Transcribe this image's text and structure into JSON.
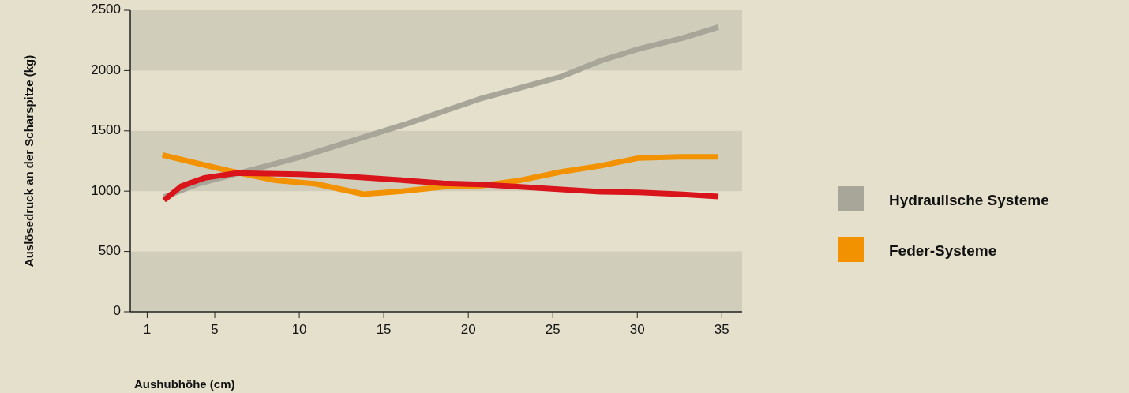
{
  "chart_data": {
    "type": "line",
    "xlabel": "Aushubhöhe (cm)",
    "ylabel": "Auslösedruck an der Scharspitze (kg)",
    "xlim": [
      0,
      36.2
    ],
    "xticks": [
      1,
      5,
      10,
      15,
      20,
      25,
      30,
      35
    ],
    "ylim": [
      0,
      2500
    ],
    "yticks": [
      0,
      500,
      1000,
      1500,
      2000,
      2500
    ],
    "grid": false,
    "legend": "right",
    "marker": "none",
    "line_style": "solid",
    "bands": [
      {
        "axis": "y",
        "from": 0,
        "to": 500,
        "color": "#d0cebb"
      },
      {
        "axis": "y",
        "from": 1000,
        "to": 1500,
        "color": "#d0cebb"
      },
      {
        "axis": "y",
        "from": 2000,
        "to": 2500,
        "color": "#d0cebb"
      }
    ],
    "series": [
      {
        "name": "Hydraulische Systeme",
        "color": "#a8a699",
        "x": [
          2,
          4,
          10,
          16.4,
          20.8,
          25.5,
          27.8,
          30.1,
          32.7,
          34.8
        ],
        "values": [
          950,
          1060,
          1280,
          1560,
          1770,
          1950,
          2080,
          2180,
          2270,
          2360
        ]
      },
      {
        "name": "Feder-Systeme",
        "color": "#f39200",
        "x": [
          1.9,
          5.8,
          8.6,
          11,
          13.8,
          16.1,
          18.5,
          20.8,
          23.1,
          25.5,
          27.8,
          30.1,
          32.5,
          34.8
        ],
        "values": [
          1300,
          1170,
          1090,
          1060,
          975,
          1000,
          1035,
          1045,
          1090,
          1160,
          1210,
          1275,
          1285,
          1285
        ]
      },
      {
        "color": "#d9141b",
        "x": [
          2,
          3,
          4.4,
          6.3,
          10,
          12.4,
          15.7,
          18.5,
          20.8,
          23.1,
          25.5,
          27.8,
          30.1,
          32.5,
          34.8
        ],
        "values": [
          925,
          1040,
          1110,
          1150,
          1140,
          1125,
          1095,
          1065,
          1055,
          1035,
          1015,
          995,
          990,
          975,
          955
        ]
      }
    ]
  }
}
